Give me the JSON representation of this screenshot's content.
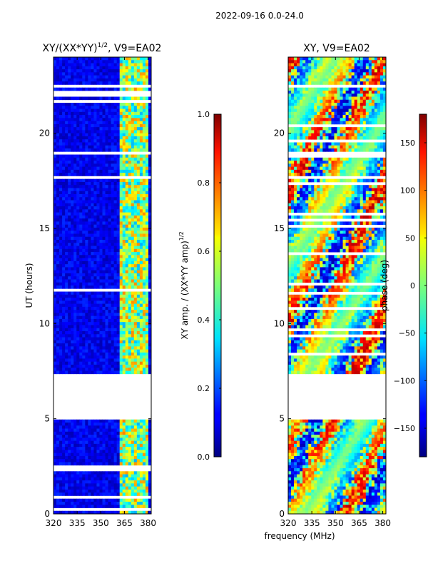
{
  "figure": {
    "suptitle": "2022-09-16 0.0-24.0",
    "shared_xlabel": "frequency (MHz)"
  },
  "chart_data": [
    {
      "type": "heatmap",
      "title": "XY/(XX*YY)",
      "title_exponent": "1/2",
      "title_suffix": ", V9=EA02",
      "xlabel": "",
      "ylabel": "UT (hours)",
      "xlim": [
        320,
        382
      ],
      "ylim": [
        0,
        24
      ],
      "xticks": [
        320,
        335,
        350,
        365,
        380
      ],
      "yticks": [
        0,
        5,
        10,
        15,
        20
      ],
      "colorbar": {
        "label": "XY amp. / (XX*YY amp)",
        "label_exponent": "1/2",
        "range": [
          0.0,
          1.0
        ],
        "ticks": [
          "0.0",
          "0.2",
          "0.4",
          "0.6",
          "0.8",
          "1.0"
        ],
        "colormap": "jet"
      },
      "description_rows_hours": {
        "data_gap": [
          5.0,
          7.4
        ]
      },
      "bright_band_mhz": [
        362,
        380
      ]
    },
    {
      "type": "heatmap",
      "title": "XY, V9=EA02",
      "xlabel": "frequency (MHz)",
      "ylabel": "",
      "xlim": [
        320,
        382
      ],
      "ylim": [
        0,
        24
      ],
      "xticks": [
        320,
        335,
        350,
        365,
        380
      ],
      "yticks": [
        0,
        5,
        10,
        15,
        20
      ],
      "colorbar": {
        "label": "phase (deg)",
        "range": [
          -180,
          180
        ],
        "ticks": [
          "−150",
          "−100",
          "−50",
          "0",
          "50",
          "100",
          "150"
        ],
        "tick_values": [
          -150,
          -100,
          -50,
          0,
          50,
          100,
          150
        ],
        "colormap": "jet"
      },
      "data_gap_hours": [
        5.0,
        7.4
      ]
    }
  ]
}
